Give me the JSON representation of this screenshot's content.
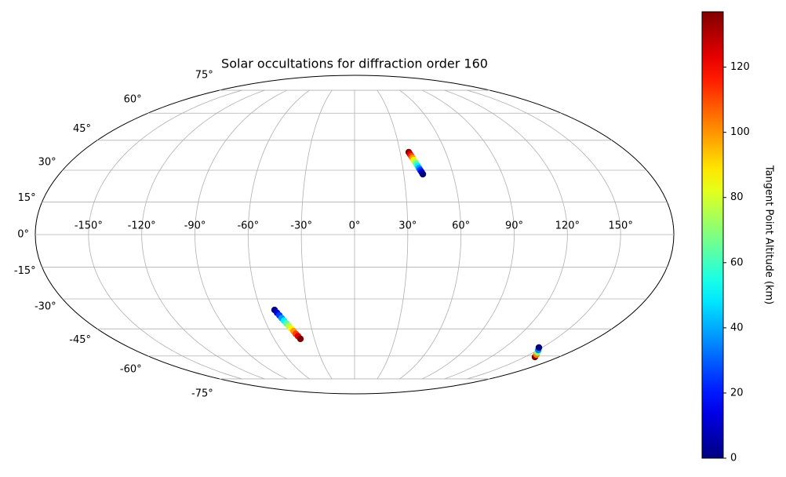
{
  "chart_data": {
    "type": "scatter",
    "projection": "mollweide",
    "title": "Solar occultations for diffraction order 160",
    "x": [
      35.7,
      36.2,
      36.8,
      37.3,
      37.8,
      38.4,
      38.9,
      39.5,
      40.0,
      40.5,
      41.1,
      41.6,
      -51.2,
      -50.2,
      -49.2,
      -48.3,
      -47.3,
      -46.3,
      -45.3,
      -44.3,
      -43.3,
      -42.4,
      -41.4,
      -40.4,
      159,
      156.1,
      153.2,
      150.3,
      147.4
    ],
    "y": [
      38.9,
      37.9,
      36.9,
      36.0,
      35.0,
      34.0,
      33.0,
      32.0,
      31.0,
      30.1,
      29.1,
      28.1,
      -35.4,
      -36.8,
      -38.1,
      -39.5,
      -40.8,
      -42.2,
      -43.5,
      -44.9,
      -46.2,
      -47.6,
      -48.9,
      -50.3,
      -60.6,
      -59.2,
      -57.9,
      -56.5,
      -55.1
    ],
    "color_values": [
      137,
      124.5,
      112,
      99.6,
      87.2,
      74.7,
      62.3,
      49.8,
      37.4,
      24.9,
      12.5,
      0,
      0,
      12.5,
      24.9,
      37.4,
      49.8,
      62.3,
      74.7,
      87.2,
      99.6,
      112,
      124.5,
      137,
      137,
      102.8,
      68.5,
      34.3,
      0
    ],
    "colormap": "jet",
    "clim": [
      0,
      137
    ],
    "cticks": [
      0,
      20,
      40,
      60,
      80,
      100,
      120
    ],
    "colorbar_label": "Tangent Point Altitude (km)",
    "xlim": [
      -180,
      180
    ],
    "ylim": [
      -90,
      90
    ],
    "xticks": [
      {
        "value": -150,
        "label": "-150°"
      },
      {
        "value": -120,
        "label": "-120°"
      },
      {
        "value": -90,
        "label": "-90°"
      },
      {
        "value": -60,
        "label": "-60°"
      },
      {
        "value": -30,
        "label": "-30°"
      },
      {
        "value": 0,
        "label": "0°"
      },
      {
        "value": 30,
        "label": "30°"
      },
      {
        "value": 60,
        "label": "60°"
      },
      {
        "value": 90,
        "label": "90°"
      },
      {
        "value": 120,
        "label": "120°"
      },
      {
        "value": 150,
        "label": "150°"
      }
    ],
    "yticks": [
      {
        "value": -75,
        "label": "-75°"
      },
      {
        "value": -60,
        "label": "-60°"
      },
      {
        "value": -45,
        "label": "-45°"
      },
      {
        "value": -30,
        "label": "-30°"
      },
      {
        "value": -15,
        "label": "-15°"
      },
      {
        "value": 0,
        "label": "0°"
      },
      {
        "value": 15,
        "label": "15°"
      },
      {
        "value": 30,
        "label": "30°"
      },
      {
        "value": 45,
        "label": "45°"
      },
      {
        "value": 60,
        "label": "60°"
      },
      {
        "value": 75,
        "label": "75°"
      }
    ],
    "grid": true
  }
}
